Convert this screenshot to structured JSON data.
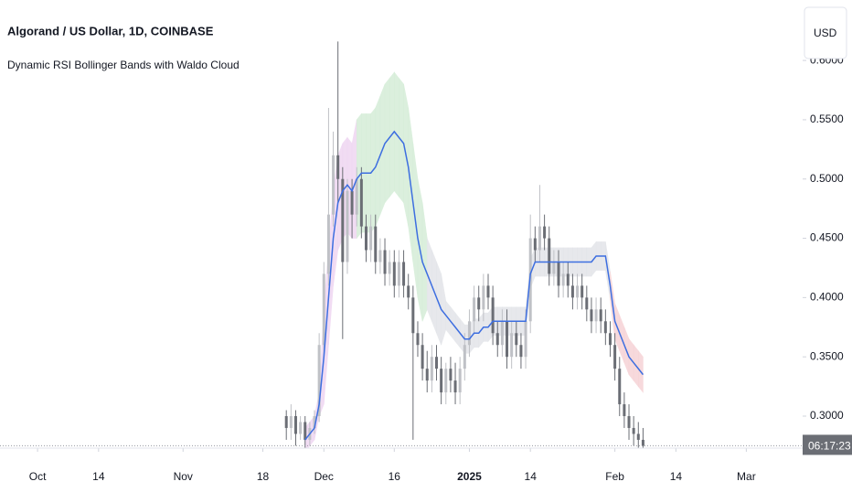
{
  "chart_data": {
    "type": "candlestick",
    "title": "Algorand / US Dollar, 1D, COINBASE",
    "subtitle": "Dynamic RSI Bollinger Bands with Waldo Cloud",
    "currency_button": "USD",
    "countdown": "06:17:23",
    "up_color": "#bfc1c6",
    "down_color": "#6b6e75",
    "x": [
      "2024-11-23",
      "2024-11-24",
      "2024-11-25",
      "2024-11-26",
      "2024-11-27",
      "2024-11-28",
      "2024-11-29",
      "2024-11-30",
      "2024-12-01",
      "2024-12-02",
      "2024-12-03",
      "2024-12-04",
      "2024-12-05",
      "2024-12-06",
      "2024-12-07",
      "2024-12-08",
      "2024-12-09",
      "2024-12-10",
      "2024-12-11",
      "2024-12-12",
      "2024-12-13",
      "2024-12-14",
      "2024-12-15",
      "2024-12-16",
      "2024-12-17",
      "2024-12-18",
      "2024-12-19",
      "2024-12-20",
      "2024-12-21",
      "2024-12-22",
      "2024-12-23",
      "2024-12-24",
      "2024-12-25",
      "2024-12-26",
      "2024-12-27",
      "2024-12-28",
      "2024-12-29",
      "2024-12-30",
      "2024-12-31",
      "2025-01-01",
      "2025-01-02",
      "2025-01-03",
      "2025-01-04",
      "2025-01-05",
      "2025-01-06",
      "2025-01-07",
      "2025-01-08",
      "2025-01-09",
      "2025-01-10",
      "2025-01-11",
      "2025-01-12",
      "2025-01-13",
      "2025-01-14",
      "2025-01-15",
      "2025-01-16",
      "2025-01-17",
      "2025-01-18",
      "2025-01-19",
      "2025-01-20",
      "2025-01-21",
      "2025-01-22",
      "2025-01-23",
      "2025-01-24",
      "2025-01-25",
      "2025-01-26",
      "2025-01-27",
      "2025-01-28",
      "2025-01-29",
      "2025-01-30",
      "2025-01-31",
      "2025-02-01",
      "2025-02-02",
      "2025-02-03",
      "2025-02-04",
      "2025-02-05",
      "2025-02-06",
      "2025-02-07"
    ],
    "open": [
      0.3,
      0.29,
      0.3,
      0.285,
      0.295,
      0.28,
      0.29,
      0.3,
      0.36,
      0.42,
      0.47,
      0.52,
      0.5,
      0.43,
      0.49,
      0.47,
      0.5,
      0.46,
      0.44,
      0.46,
      0.43,
      0.44,
      0.42,
      0.43,
      0.41,
      0.43,
      0.41,
      0.4,
      0.37,
      0.36,
      0.34,
      0.33,
      0.35,
      0.34,
      0.32,
      0.34,
      0.33,
      0.32,
      0.34,
      0.36,
      0.38,
      0.4,
      0.39,
      0.41,
      0.4,
      0.37,
      0.36,
      0.38,
      0.35,
      0.37,
      0.36,
      0.35,
      0.38,
      0.45,
      0.44,
      0.46,
      0.45,
      0.42,
      0.43,
      0.41,
      0.42,
      0.41,
      0.4,
      0.41,
      0.4,
      0.39,
      0.38,
      0.39,
      0.38,
      0.37,
      0.36,
      0.34,
      0.31,
      0.3,
      0.29,
      0.285,
      0.28
    ],
    "high": [
      0.305,
      0.31,
      0.305,
      0.3,
      0.3,
      0.295,
      0.305,
      0.37,
      0.43,
      0.56,
      0.54,
      0.616,
      0.51,
      0.5,
      0.5,
      0.51,
      0.51,
      0.47,
      0.47,
      0.47,
      0.45,
      0.45,
      0.44,
      0.44,
      0.44,
      0.44,
      0.42,
      0.41,
      0.38,
      0.37,
      0.355,
      0.36,
      0.36,
      0.35,
      0.345,
      0.35,
      0.345,
      0.35,
      0.37,
      0.39,
      0.41,
      0.41,
      0.42,
      0.42,
      0.41,
      0.38,
      0.39,
      0.39,
      0.38,
      0.38,
      0.37,
      0.39,
      0.47,
      0.46,
      0.495,
      0.47,
      0.46,
      0.44,
      0.44,
      0.43,
      0.43,
      0.42,
      0.42,
      0.42,
      0.41,
      0.4,
      0.4,
      0.4,
      0.39,
      0.38,
      0.37,
      0.35,
      0.32,
      0.31,
      0.3,
      0.295,
      0.29
    ],
    "low": [
      0.28,
      0.28,
      0.275,
      0.28,
      0.27,
      0.275,
      0.285,
      0.295,
      0.35,
      0.41,
      0.46,
      0.48,
      0.365,
      0.42,
      0.45,
      0.46,
      0.45,
      0.43,
      0.43,
      0.42,
      0.42,
      0.41,
      0.41,
      0.4,
      0.4,
      0.4,
      0.39,
      0.28,
      0.35,
      0.33,
      0.32,
      0.32,
      0.33,
      0.31,
      0.31,
      0.32,
      0.31,
      0.31,
      0.33,
      0.35,
      0.37,
      0.38,
      0.38,
      0.39,
      0.36,
      0.35,
      0.35,
      0.34,
      0.34,
      0.35,
      0.34,
      0.34,
      0.37,
      0.43,
      0.43,
      0.44,
      0.41,
      0.41,
      0.4,
      0.4,
      0.4,
      0.39,
      0.39,
      0.39,
      0.38,
      0.37,
      0.37,
      0.37,
      0.36,
      0.35,
      0.33,
      0.3,
      0.29,
      0.28,
      0.275,
      0.27,
      0.27
    ],
    "close": [
      0.29,
      0.3,
      0.285,
      0.295,
      0.28,
      0.29,
      0.3,
      0.36,
      0.42,
      0.47,
      0.52,
      0.5,
      0.43,
      0.49,
      0.47,
      0.5,
      0.46,
      0.44,
      0.46,
      0.43,
      0.44,
      0.42,
      0.43,
      0.41,
      0.43,
      0.41,
      0.4,
      0.37,
      0.36,
      0.34,
      0.33,
      0.35,
      0.34,
      0.32,
      0.34,
      0.33,
      0.32,
      0.34,
      0.36,
      0.38,
      0.4,
      0.39,
      0.41,
      0.4,
      0.37,
      0.36,
      0.38,
      0.35,
      0.37,
      0.36,
      0.35,
      0.38,
      0.45,
      0.44,
      0.46,
      0.45,
      0.42,
      0.43,
      0.41,
      0.42,
      0.41,
      0.4,
      0.41,
      0.4,
      0.39,
      0.38,
      0.39,
      0.38,
      0.37,
      0.36,
      0.34,
      0.31,
      0.3,
      0.29,
      0.285,
      0.28,
      0.275
    ],
    "bands": {
      "line_color": "#3d6ee0",
      "basis": [
        null,
        null,
        null,
        null,
        0.28,
        0.285,
        0.29,
        0.31,
        0.35,
        0.4,
        0.45,
        0.48,
        0.49,
        0.495,
        0.49,
        0.5,
        0.505,
        0.505,
        0.505,
        0.51,
        0.52,
        0.53,
        0.535,
        0.54,
        0.535,
        0.53,
        0.51,
        0.48,
        0.45,
        0.43,
        0.42,
        0.41,
        0.4,
        0.39,
        0.385,
        0.38,
        0.375,
        0.37,
        0.365,
        0.365,
        0.37,
        0.37,
        0.375,
        0.375,
        0.38,
        0.38,
        0.38,
        0.38,
        0.38,
        0.38,
        0.38,
        0.38,
        0.42,
        0.43,
        0.43,
        0.43,
        0.43,
        0.43,
        0.43,
        0.43,
        0.43,
        0.43,
        0.43,
        0.43,
        0.43,
        0.43,
        0.435,
        0.435,
        0.435,
        0.41,
        0.38,
        0.37,
        0.36,
        0.35,
        0.345,
        0.34,
        0.335
      ],
      "upper": [
        null,
        null,
        null,
        null,
        0.29,
        0.295,
        0.3,
        0.32,
        0.39,
        0.44,
        0.49,
        0.52,
        0.53,
        0.535,
        0.53,
        0.55,
        0.555,
        0.555,
        0.555,
        0.56,
        0.57,
        0.58,
        0.585,
        0.59,
        0.585,
        0.58,
        0.56,
        0.53,
        0.5,
        0.48,
        0.45,
        0.44,
        0.43,
        0.42,
        0.397,
        0.392,
        0.387,
        0.382,
        0.377,
        0.377,
        0.382,
        0.382,
        0.387,
        0.387,
        0.392,
        0.392,
        0.392,
        0.392,
        0.392,
        0.392,
        0.392,
        0.392,
        0.432,
        0.442,
        0.442,
        0.442,
        0.442,
        0.442,
        0.442,
        0.442,
        0.442,
        0.442,
        0.442,
        0.442,
        0.442,
        0.442,
        0.447,
        0.447,
        0.447,
        0.422,
        0.395,
        0.385,
        0.375,
        0.365,
        0.36,
        0.355,
        0.35
      ],
      "lower": [
        null,
        null,
        null,
        null,
        0.27,
        0.275,
        0.28,
        0.3,
        0.31,
        0.36,
        0.41,
        0.44,
        0.45,
        0.455,
        0.45,
        0.45,
        0.455,
        0.455,
        0.455,
        0.46,
        0.47,
        0.48,
        0.485,
        0.49,
        0.485,
        0.48,
        0.46,
        0.43,
        0.4,
        0.38,
        0.39,
        0.38,
        0.37,
        0.36,
        0.373,
        0.368,
        0.363,
        0.358,
        0.353,
        0.353,
        0.358,
        0.358,
        0.363,
        0.363,
        0.368,
        0.368,
        0.368,
        0.368,
        0.368,
        0.368,
        0.368,
        0.368,
        0.408,
        0.418,
        0.418,
        0.418,
        0.418,
        0.418,
        0.418,
        0.418,
        0.418,
        0.418,
        0.418,
        0.418,
        0.418,
        0.418,
        0.423,
        0.423,
        0.423,
        0.398,
        0.365,
        0.355,
        0.345,
        0.335,
        0.33,
        0.325,
        0.32
      ],
      "cloud_colors": [
        null,
        null,
        null,
        null,
        "#efd6f2",
        "#efd6f2",
        "#efd6f2",
        "#efd6f2",
        "#efd6f2",
        "#efd6f2",
        "#efd6f2",
        "#efd6f2",
        "#efd6f2",
        "#efd6f2",
        "#efd6f2",
        "#d5edd8",
        "#d5edd8",
        "#d5edd8",
        "#d5edd8",
        "#d5edd8",
        "#d5edd8",
        "#d5edd8",
        "#d5edd8",
        "#d5edd8",
        "#d5edd8",
        "#d5edd8",
        "#d5edd8",
        "#d5edd8",
        "#d5edd8",
        "#d5edd8",
        "#e3e5e9",
        "#e3e5e9",
        "#e3e5e9",
        "#e3e5e9",
        "#e3e5e9",
        "#e3e5e9",
        "#e3e5e9",
        "#e3e5e9",
        "#e3e5e9",
        "#e3e5e9",
        "#e3e5e9",
        "#e3e5e9",
        "#e3e5e9",
        "#e3e5e9",
        "#e3e5e9",
        "#e3e5e9",
        "#e3e5e9",
        "#e3e5e9",
        "#e3e5e9",
        "#e3e5e9",
        "#e3e5e9",
        "#e3e5e9",
        "#e3e5e9",
        "#e3e5e9",
        "#e3e5e9",
        "#e3e5e9",
        "#e3e5e9",
        "#e3e5e9",
        "#e3e5e9",
        "#e3e5e9",
        "#e3e5e9",
        "#e3e5e9",
        "#e3e5e9",
        "#e3e5e9",
        "#e3e5e9",
        "#e3e5e9",
        "#e3e5e9",
        "#e3e5e9",
        "#e3e5e9",
        "#f6d3d6",
        "#f6d3d6",
        "#f6d3d6",
        "#f6d3d6",
        "#f6d3d6",
        "#f6d3d6",
        "#f6d3d6",
        "#f6d3d6"
      ]
    },
    "xlim": [
      "2024-09-23",
      "2025-03-13"
    ],
    "xticks": [
      {
        "value": "2024-10-01",
        "label": "Oct"
      },
      {
        "value": "2024-10-14",
        "label": "14"
      },
      {
        "value": "2024-11-01",
        "label": "Nov"
      },
      {
        "value": "2024-11-18",
        "label": "18"
      },
      {
        "value": "2024-12-01",
        "label": "Dec"
      },
      {
        "value": "2024-12-16",
        "label": "16"
      },
      {
        "value": "2025-01-01",
        "label": "2025"
      },
      {
        "value": "2025-01-14",
        "label": "14"
      },
      {
        "value": "2025-02-01",
        "label": "Feb"
      },
      {
        "value": "2025-02-14",
        "label": "14"
      },
      {
        "value": "2025-03-01",
        "label": "Mar"
      }
    ],
    "ylim": [
      0.273,
      0.651
    ],
    "yticks": [
      {
        "value": 0.3,
        "label": "0.3000"
      },
      {
        "value": 0.35,
        "label": "0.3500"
      },
      {
        "value": 0.4,
        "label": "0.4000"
      },
      {
        "value": 0.45,
        "label": "0.4500"
      },
      {
        "value": 0.5,
        "label": "0.5000"
      },
      {
        "value": 0.55,
        "label": "0.5500"
      },
      {
        "value": 0.6,
        "label": "0.6000"
      }
    ]
  }
}
